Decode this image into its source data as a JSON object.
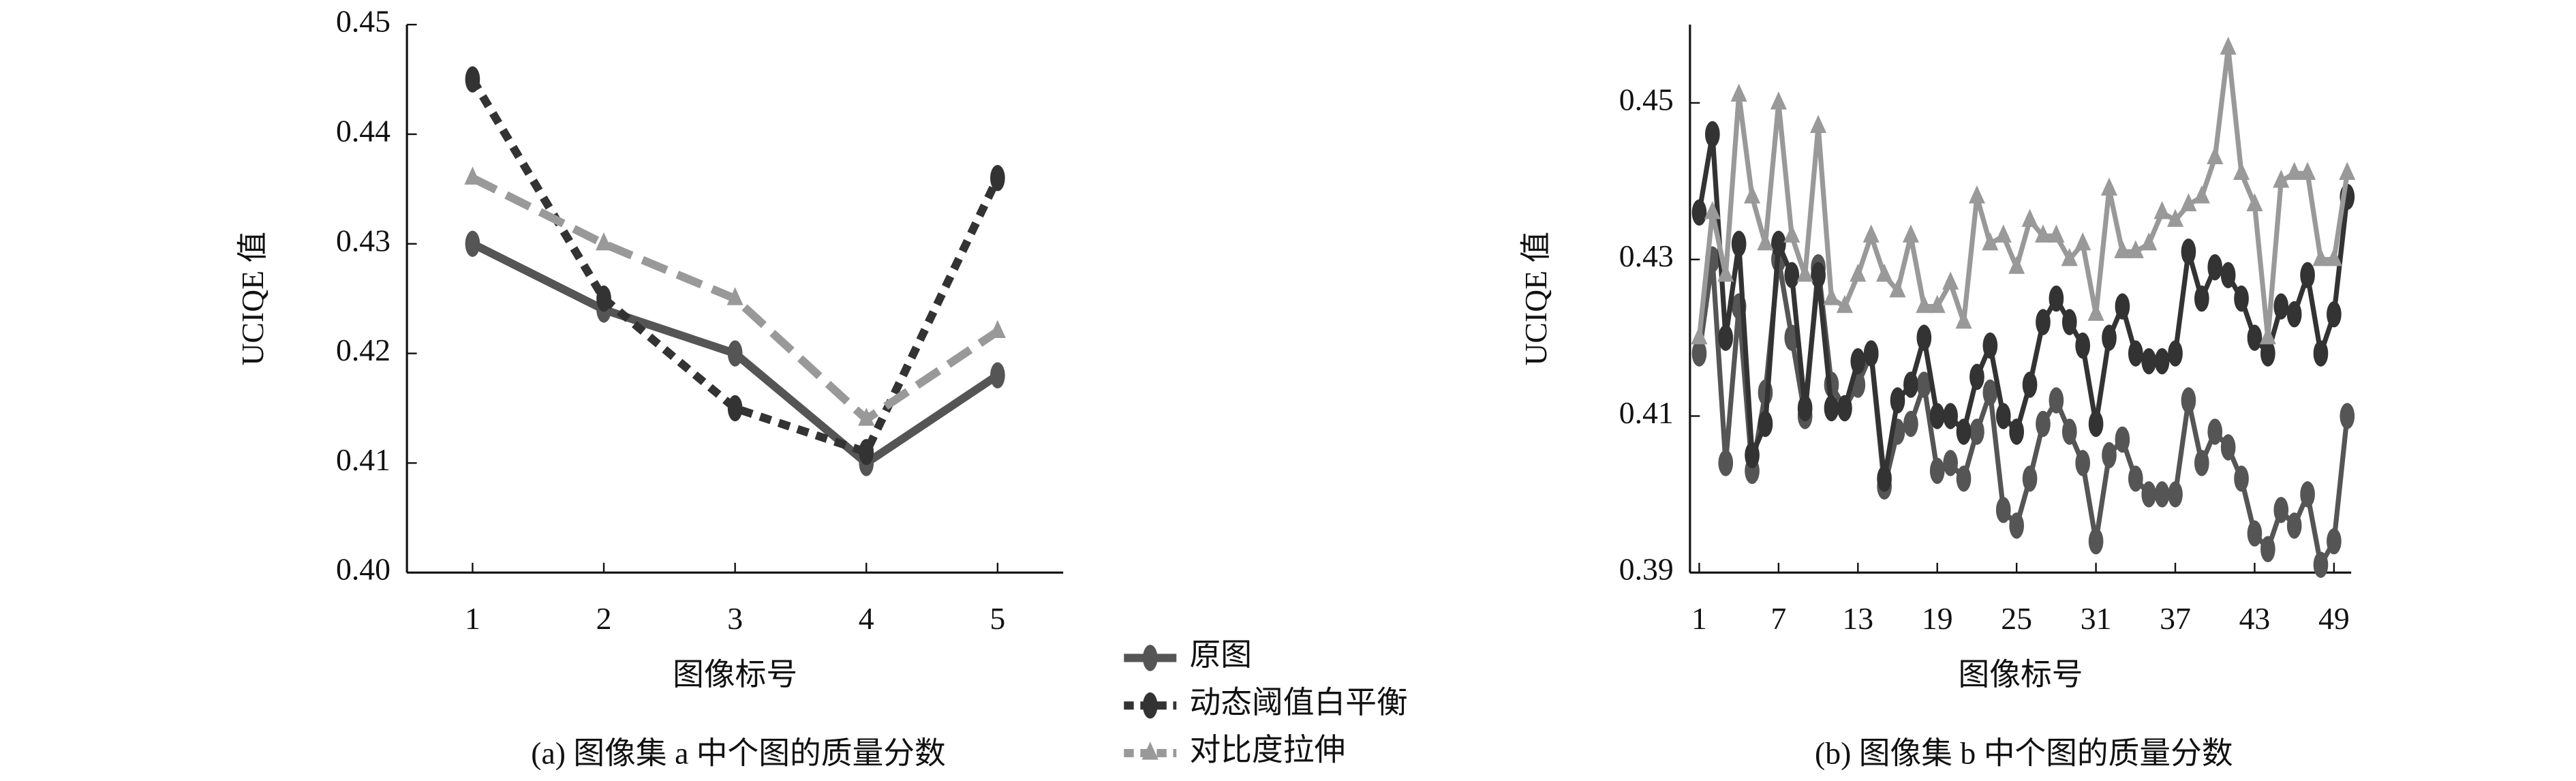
{
  "chart_data": [
    {
      "type": "line",
      "caption": "(a) 图像集 a 中个图的质量分数",
      "xlabel": "图像标号",
      "ylabel": "UCIQE 值",
      "x": [
        1,
        2,
        3,
        4,
        5
      ],
      "xlim": [
        0.5,
        5.5
      ],
      "xticks": [
        1,
        2,
        3,
        4,
        5
      ],
      "ylim": [
        0.4,
        0.45
      ],
      "yticks": [
        {
          "value": 0.4,
          "label": "0.40"
        },
        0.41,
        0.42,
        0.43,
        0.44,
        0.45
      ],
      "series": [
        {
          "name": "原图",
          "color": "#555555",
          "dash": "none",
          "marker": "diamond",
          "values": [
            0.43,
            0.424,
            0.42,
            0.41,
            0.418
          ]
        },
        {
          "name": "动态阈值白平衡",
          "color": "#333333",
          "dash": "7,5",
          "marker": "diamond",
          "values": [
            0.445,
            0.425,
            0.415,
            0.411,
            0.436
          ]
        },
        {
          "name": "对比度拉伸",
          "color": "#999999",
          "dash": "16,7",
          "marker": "triangle",
          "values": [
            0.436,
            0.43,
            0.425,
            0.414,
            0.422
          ]
        }
      ]
    },
    {
      "type": "line",
      "caption": "(b) 图像集 b 中个图的质量分数",
      "xlabel": "图像标号",
      "ylabel": "UCIQE 值",
      "x": [
        1,
        2,
        3,
        4,
        5,
        6,
        7,
        8,
        9,
        10,
        11,
        12,
        13,
        14,
        15,
        16,
        17,
        18,
        19,
        20,
        21,
        22,
        23,
        24,
        25,
        26,
        27,
        28,
        29,
        30,
        31,
        32,
        33,
        34,
        35,
        36,
        37,
        38,
        39,
        40,
        41,
        42,
        43,
        44,
        45,
        46,
        47,
        48,
        49,
        50
      ],
      "xlim": [
        0.3,
        50.3
      ],
      "xticks": [
        1,
        7,
        13,
        19,
        25,
        31,
        37,
        43,
        49
      ],
      "ylim": [
        0.39,
        0.46
      ],
      "yticks": [
        0.39,
        0.41,
        0.43,
        0.45
      ],
      "series": [
        {
          "color": "#555555",
          "dash": "none",
          "marker": "diamond",
          "values": [
            0.418,
            0.43,
            0.404,
            0.424,
            0.403,
            0.413,
            0.43,
            0.42,
            0.41,
            0.429,
            0.414,
            0.411,
            0.414,
            0.418,
            0.401,
            0.408,
            0.409,
            0.414,
            0.403,
            0.404,
            0.402,
            0.408,
            0.413,
            0.398,
            0.396,
            0.402,
            0.409,
            0.412,
            0.408,
            0.404,
            0.394,
            0.405,
            0.407,
            0.402,
            0.4,
            0.4,
            0.4,
            0.412,
            0.404,
            0.408,
            0.406,
            0.402,
            0.395,
            0.393,
            0.398,
            0.396,
            0.4,
            0.391,
            0.394,
            0.41
          ]
        },
        {
          "color": "#333333",
          "dash": "none",
          "marker": "diamond",
          "values": [
            0.436,
            0.446,
            0.42,
            0.432,
            0.405,
            0.409,
            0.432,
            0.428,
            0.411,
            0.428,
            0.411,
            0.411,
            0.417,
            0.418,
            0.402,
            0.412,
            0.414,
            0.42,
            0.41,
            0.41,
            0.408,
            0.415,
            0.419,
            0.41,
            0.408,
            0.414,
            0.422,
            0.425,
            0.422,
            0.419,
            0.409,
            0.42,
            0.424,
            0.418,
            0.417,
            0.417,
            0.418,
            0.431,
            0.425,
            0.429,
            0.428,
            0.425,
            0.42,
            0.418,
            0.424,
            0.423,
            0.428,
            0.418,
            0.423,
            0.438
          ]
        },
        {
          "color": "#999999",
          "dash": "none",
          "marker": "triangle",
          "values": [
            0.42,
            0.436,
            0.428,
            0.451,
            0.438,
            0.432,
            0.45,
            0.433,
            0.428,
            0.447,
            0.425,
            0.424,
            0.428,
            0.433,
            0.428,
            0.426,
            0.433,
            0.424,
            0.424,
            0.427,
            0.422,
            0.438,
            0.432,
            0.433,
            0.429,
            0.435,
            0.433,
            0.433,
            0.43,
            0.432,
            0.423,
            0.439,
            0.431,
            0.431,
            0.432,
            0.436,
            0.435,
            0.437,
            0.438,
            0.443,
            0.457,
            0.441,
            0.437,
            0.42,
            0.44,
            0.441,
            0.441,
            0.43,
            0.43,
            0.441
          ]
        }
      ]
    }
  ]
}
